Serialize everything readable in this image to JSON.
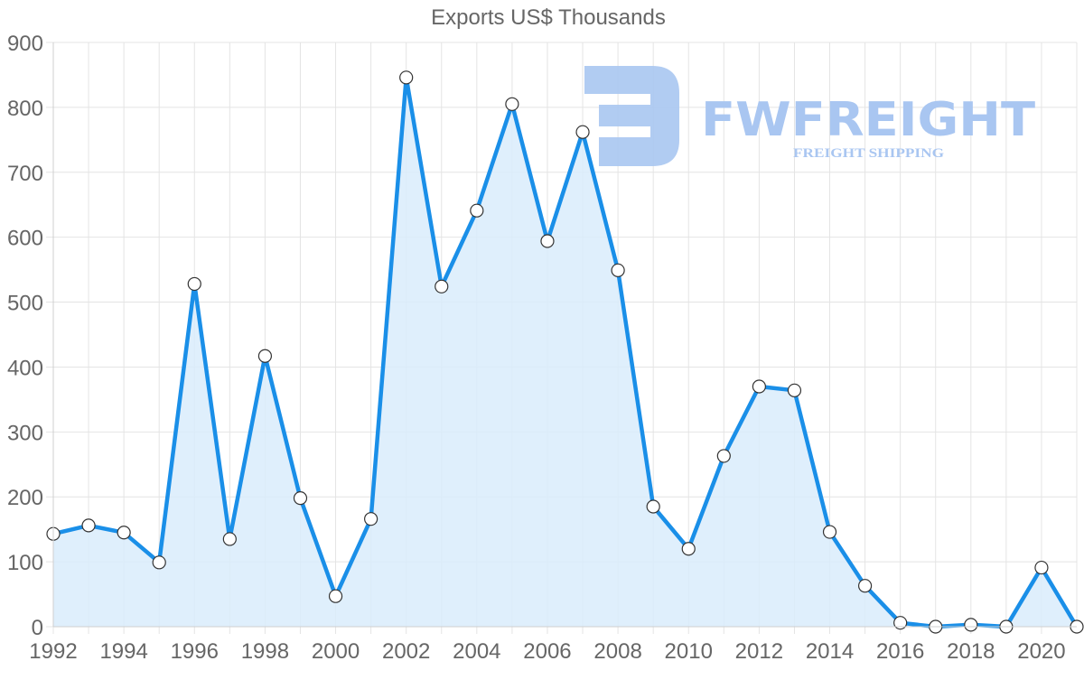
{
  "chart_data": {
    "type": "area",
    "title": "Exports US$ Thousands",
    "xlabel": "",
    "ylabel": "",
    "x": [
      1992,
      1993,
      1994,
      1995,
      1996,
      1997,
      1998,
      1999,
      2000,
      2001,
      2002,
      2003,
      2004,
      2005,
      2006,
      2007,
      2008,
      2009,
      2010,
      2011,
      2012,
      2013,
      2014,
      2015,
      2016,
      2017,
      2018,
      2019,
      2020,
      2021
    ],
    "series": [
      {
        "name": "Exports US$ Thousands",
        "values": [
          143,
          156,
          145,
          99,
          528,
          135,
          417,
          198,
          47,
          166,
          846,
          524,
          641,
          805,
          594,
          762,
          549,
          185,
          120,
          263,
          370,
          364,
          146,
          63,
          6,
          0,
          3,
          0,
          91,
          0
        ]
      }
    ],
    "xticks": [
      "1992",
      "1994",
      "1996",
      "1998",
      "2000",
      "2002",
      "2004",
      "2006",
      "2008",
      "2010",
      "2012",
      "2014",
      "2016",
      "2018",
      "2020"
    ],
    "yticks": [
      "0",
      "100",
      "200",
      "300",
      "400",
      "500",
      "600",
      "700",
      "800",
      "900"
    ],
    "ylim": [
      0,
      900
    ],
    "xlim": [
      1992,
      2021
    ],
    "grid": true,
    "legend": "none",
    "colors": {
      "line": "#1a8fe8",
      "fill": "#d9ecfb",
      "point_fill": "#ffffff",
      "point_stroke": "#333333",
      "grid": "#e4e4e4",
      "text": "#666666"
    }
  },
  "watermark": {
    "brand": "FWFREIGHT",
    "tagline": "FREIGHT SHIPPING",
    "color": "#a9c6f1"
  }
}
